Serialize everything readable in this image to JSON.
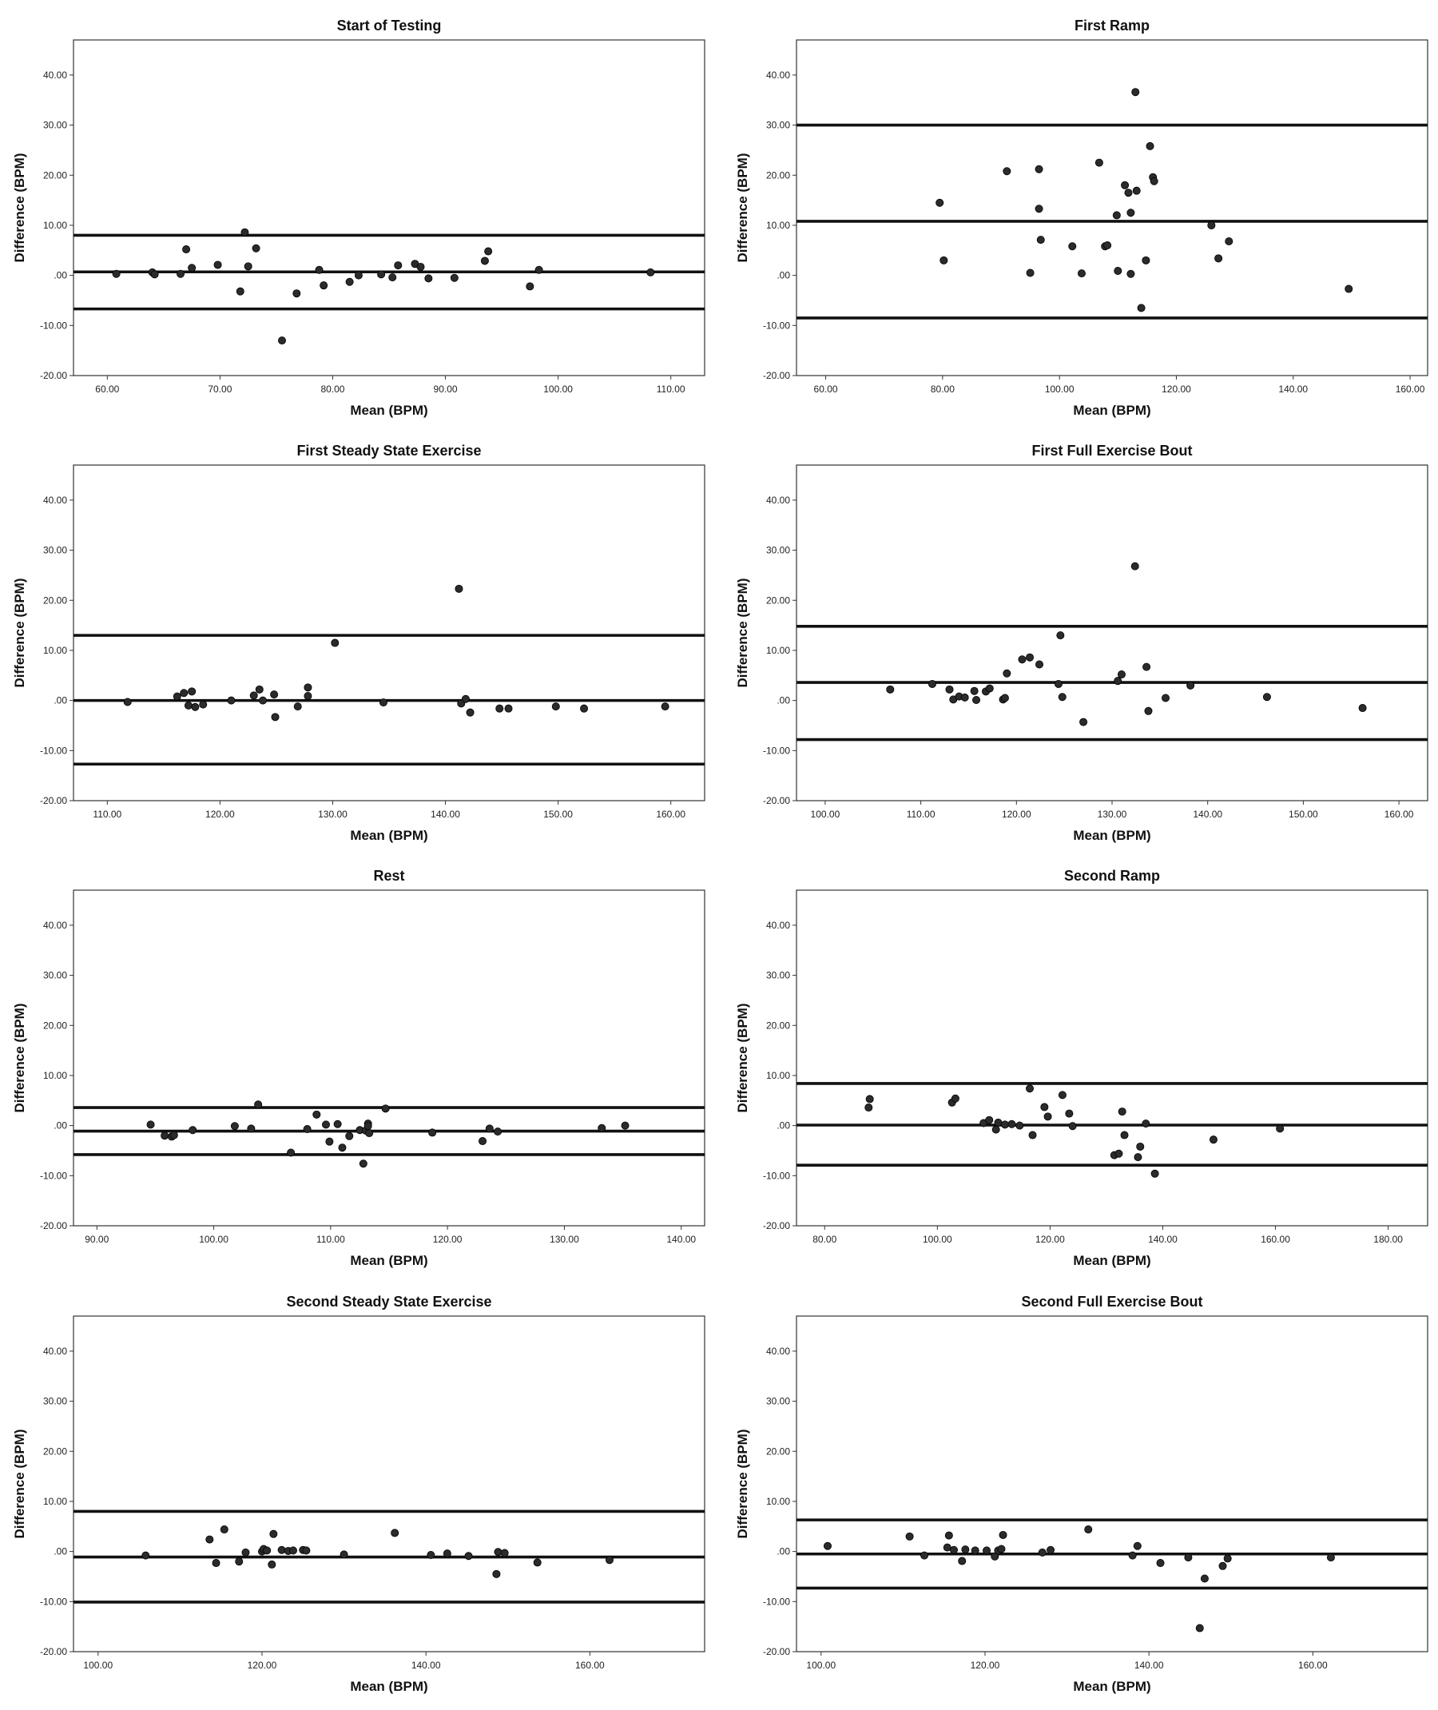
{
  "chart_data": [
    {
      "type": "scatter",
      "title": "Start of Testing",
      "xlabel": "Mean (BPM)",
      "ylabel": "Difference (BPM)",
      "xlim": [
        57,
        113
      ],
      "ylim": [
        -20,
        47
      ],
      "xticks": [
        60,
        70,
        80,
        90,
        100,
        110
      ],
      "xtick_labels": [
        "60.00",
        "70.00",
        "80.00",
        "90.00",
        "100.00",
        "110.00"
      ],
      "yticks": [
        -20,
        -10,
        0,
        10,
        20,
        30,
        40
      ],
      "ytick_labels": [
        "-20.00",
        "-10.00",
        ".00",
        "10.00",
        "20.00",
        "30.00",
        "40.00"
      ],
      "reference_lines": [
        8,
        0.7,
        -6.7
      ],
      "points": [
        [
          60.8,
          0.3
        ],
        [
          64.0,
          0.6
        ],
        [
          64.2,
          0.2
        ],
        [
          66.5,
          0.3
        ],
        [
          67.0,
          5.2
        ],
        [
          67.5,
          1.5
        ],
        [
          69.8,
          2.1
        ],
        [
          71.8,
          -3.2
        ],
        [
          72.2,
          8.6
        ],
        [
          72.5,
          1.8
        ],
        [
          73.2,
          5.4
        ],
        [
          75.5,
          -13
        ],
        [
          76.8,
          -3.6
        ],
        [
          78.8,
          1.1
        ],
        [
          79.2,
          -2.0
        ],
        [
          81.5,
          -1.3
        ],
        [
          82.3,
          0.0
        ],
        [
          84.3,
          0.2
        ],
        [
          85.3,
          -0.4
        ],
        [
          85.8,
          2.0
        ],
        [
          87.3,
          2.3
        ],
        [
          87.8,
          1.7
        ],
        [
          88.5,
          -0.6
        ],
        [
          90.8,
          -0.5
        ],
        [
          93.5,
          2.9
        ],
        [
          93.8,
          4.8
        ],
        [
          97.5,
          -2.2
        ],
        [
          98.3,
          1.1
        ],
        [
          108.2,
          0.6
        ]
      ]
    },
    {
      "type": "scatter",
      "title": "First Ramp",
      "xlabel": "Mean (BPM)",
      "ylabel": "Difference (BPM)",
      "xlim": [
        55,
        163
      ],
      "ylim": [
        -20,
        47
      ],
      "xticks": [
        60,
        80,
        100,
        120,
        140,
        160
      ],
      "xtick_labels": [
        "60.00",
        "80.00",
        "100.00",
        "120.00",
        "140.00",
        "160.00"
      ],
      "yticks": [
        -20,
        -10,
        0,
        10,
        20,
        30,
        40
      ],
      "ytick_labels": [
        "-20.00",
        "-10.00",
        ".00",
        "10.00",
        "20.00",
        "30.00",
        "40.00"
      ],
      "reference_lines": [
        30,
        10.8,
        -8.5
      ],
      "points": [
        [
          79.5,
          14.5
        ],
        [
          80.2,
          3.0
        ],
        [
          91.0,
          20.8
        ],
        [
          95.0,
          0.5
        ],
        [
          96.5,
          21.2
        ],
        [
          96.5,
          13.3
        ],
        [
          96.8,
          7.1
        ],
        [
          102.2,
          5.8
        ],
        [
          103.8,
          0.4
        ],
        [
          106.8,
          22.5
        ],
        [
          107.8,
          5.8
        ],
        [
          108.2,
          6.0
        ],
        [
          109.8,
          12.0
        ],
        [
          110.0,
          0.9
        ],
        [
          111.2,
          18.0
        ],
        [
          111.8,
          16.5
        ],
        [
          112.2,
          12.5
        ],
        [
          112.2,
          0.3
        ],
        [
          113.0,
          36.6
        ],
        [
          113.2,
          16.9
        ],
        [
          114.0,
          -6.5
        ],
        [
          114.8,
          3.0
        ],
        [
          115.5,
          25.8
        ],
        [
          116.0,
          19.6
        ],
        [
          116.2,
          18.8
        ],
        [
          126.0,
          10.0
        ],
        [
          127.2,
          3.4
        ],
        [
          129.0,
          6.8
        ],
        [
          149.5,
          -2.7
        ]
      ]
    },
    {
      "type": "scatter",
      "title": "First Steady State Exercise",
      "xlabel": "Mean (BPM)",
      "ylabel": "Difference (BPM)",
      "xlim": [
        107,
        163
      ],
      "ylim": [
        -20,
        47
      ],
      "xticks": [
        110,
        120,
        130,
        140,
        150,
        160
      ],
      "xtick_labels": [
        "110.00",
        "120.00",
        "130.00",
        "140.00",
        "150.00",
        "160.00"
      ],
      "yticks": [
        -20,
        -10,
        0,
        10,
        20,
        30,
        40
      ],
      "ytick_labels": [
        "-20.00",
        "-10.00",
        ".00",
        "10.00",
        "20.00",
        "30.00",
        "40.00"
      ],
      "reference_lines": [
        13,
        0,
        -12.7
      ],
      "points": [
        [
          111.8,
          -0.3
        ],
        [
          116.2,
          0.8
        ],
        [
          116.8,
          1.5
        ],
        [
          117.2,
          -1.0
        ],
        [
          117.5,
          1.8
        ],
        [
          117.8,
          -1.3
        ],
        [
          118.5,
          -0.8
        ],
        [
          121.0,
          0.0
        ],
        [
          123.0,
          1.0
        ],
        [
          123.5,
          2.2
        ],
        [
          123.8,
          0.0
        ],
        [
          124.8,
          1.2
        ],
        [
          124.9,
          -3.3
        ],
        [
          126.9,
          -1.2
        ],
        [
          127.8,
          0.9
        ],
        [
          127.8,
          2.6
        ],
        [
          130.2,
          11.5
        ],
        [
          134.5,
          -0.4
        ],
        [
          141.2,
          22.3
        ],
        [
          141.4,
          -0.6
        ],
        [
          141.8,
          0.3
        ],
        [
          142.2,
          -2.4
        ],
        [
          144.8,
          -1.6
        ],
        [
          145.6,
          -1.6
        ],
        [
          149.8,
          -1.2
        ],
        [
          152.3,
          -1.6
        ],
        [
          159.5,
          -1.2
        ]
      ]
    },
    {
      "type": "scatter",
      "title": "First Full Exercise Bout",
      "xlabel": "Mean (BPM)",
      "ylabel": "Difference (BPM)",
      "xlim": [
        97,
        163
      ],
      "ylim": [
        -20,
        47
      ],
      "xticks": [
        100,
        110,
        120,
        130,
        140,
        150,
        160
      ],
      "xtick_labels": [
        "100.00",
        "110.00",
        "120.00",
        "130.00",
        "140.00",
        "150.00",
        "160.00"
      ],
      "yticks": [
        -20,
        -10,
        0,
        10,
        20,
        30,
        40
      ],
      "ytick_labels": [
        "-20.00",
        "-10.00",
        ".00",
        "10.00",
        "20.00",
        "30.00",
        "40.00"
      ],
      "reference_lines": [
        14.8,
        3.6,
        -7.8
      ],
      "points": [
        [
          106.8,
          2.2
        ],
        [
          111.2,
          3.3
        ],
        [
          113.0,
          2.2
        ],
        [
          113.4,
          0.2
        ],
        [
          114.0,
          0.8
        ],
        [
          114.6,
          0.6
        ],
        [
          115.6,
          1.9
        ],
        [
          115.8,
          0.1
        ],
        [
          116.8,
          1.8
        ],
        [
          117.2,
          2.4
        ],
        [
          118.6,
          0.2
        ],
        [
          118.8,
          0.5
        ],
        [
          119.0,
          5.4
        ],
        [
          120.6,
          8.2
        ],
        [
          121.4,
          8.6
        ],
        [
          122.4,
          7.2
        ],
        [
          124.4,
          3.3
        ],
        [
          124.6,
          13.0
        ],
        [
          124.8,
          0.7
        ],
        [
          127.0,
          -4.3
        ],
        [
          130.6,
          3.9
        ],
        [
          131.0,
          5.2
        ],
        [
          132.4,
          26.8
        ],
        [
          133.6,
          6.7
        ],
        [
          133.8,
          -2.1
        ],
        [
          135.6,
          0.5
        ],
        [
          138.2,
          3.0
        ],
        [
          146.2,
          0.7
        ],
        [
          156.2,
          -1.5
        ]
      ]
    },
    {
      "type": "scatter",
      "title": "Rest",
      "xlabel": "Mean (BPM)",
      "ylabel": "Difference (BPM)",
      "xlim": [
        88,
        142
      ],
      "ylim": [
        -20,
        47
      ],
      "xticks": [
        90,
        100,
        110,
        120,
        130,
        140
      ],
      "xtick_labels": [
        "90.00",
        "100.00",
        "110.00",
        "120.00",
        "130.00",
        "140.00"
      ],
      "yticks": [
        -20,
        -10,
        0,
        10,
        20,
        30,
        40
      ],
      "ytick_labels": [
        "-20.00",
        "-10.00",
        ".00",
        "10.00",
        "20.00",
        "30.00",
        "40.00"
      ],
      "reference_lines": [
        3.6,
        -1.1,
        -5.8
      ],
      "points": [
        [
          94.6,
          0.2
        ],
        [
          95.8,
          -2.0
        ],
        [
          96.4,
          -2.2
        ],
        [
          96.6,
          -1.9
        ],
        [
          98.2,
          -0.9
        ],
        [
          101.8,
          -0.1
        ],
        [
          103.2,
          -0.6
        ],
        [
          103.8,
          4.2
        ],
        [
          106.6,
          -5.4
        ],
        [
          108.0,
          -0.7
        ],
        [
          108.8,
          2.2
        ],
        [
          109.6,
          0.2
        ],
        [
          109.9,
          -3.2
        ],
        [
          110.6,
          0.3
        ],
        [
          111.0,
          -4.4
        ],
        [
          111.6,
          -2.1
        ],
        [
          112.5,
          -0.9
        ],
        [
          112.8,
          -7.6
        ],
        [
          113.0,
          -1.0
        ],
        [
          113.2,
          0.4
        ],
        [
          113.2,
          -0.1
        ],
        [
          113.3,
          -1.5
        ],
        [
          114.7,
          3.4
        ],
        [
          118.7,
          -1.4
        ],
        [
          123.0,
          -3.1
        ],
        [
          123.6,
          -0.6
        ],
        [
          124.3,
          -1.2
        ],
        [
          133.2,
          -0.5
        ],
        [
          135.2,
          0.0
        ]
      ]
    },
    {
      "type": "scatter",
      "title": "Second Ramp",
      "xlabel": "Mean (BPM)",
      "ylabel": "Difference (BPM)",
      "xlim": [
        75,
        187
      ],
      "ylim": [
        -20,
        47
      ],
      "xticks": [
        80,
        100,
        120,
        140,
        160,
        180
      ],
      "xtick_labels": [
        "80.00",
        "100.00",
        "120.00",
        "140.00",
        "160.00",
        "180.00"
      ],
      "yticks": [
        -20,
        -10,
        0,
        10,
        20,
        30,
        40
      ],
      "ytick_labels": [
        "-20.00",
        "-10.00",
        ".00",
        "10.00",
        "20.00",
        "30.00",
        "40.00"
      ],
      "reference_lines": [
        8.4,
        0.1,
        -7.9
      ],
      "points": [
        [
          87.8,
          3.6
        ],
        [
          88.0,
          5.3
        ],
        [
          102.6,
          4.6
        ],
        [
          103.2,
          5.4
        ],
        [
          108.2,
          0.5
        ],
        [
          109.2,
          1.1
        ],
        [
          110.4,
          -0.8
        ],
        [
          110.8,
          0.6
        ],
        [
          112.0,
          0.2
        ],
        [
          113.2,
          0.3
        ],
        [
          114.6,
          0.0
        ],
        [
          116.4,
          7.4
        ],
        [
          116.9,
          -1.9
        ],
        [
          119.0,
          3.7
        ],
        [
          119.6,
          1.8
        ],
        [
          122.2,
          6.1
        ],
        [
          123.4,
          2.4
        ],
        [
          124.0,
          -0.1
        ],
        [
          131.4,
          -5.9
        ],
        [
          132.2,
          -5.6
        ],
        [
          132.8,
          2.8
        ],
        [
          133.2,
          -1.9
        ],
        [
          135.6,
          -6.3
        ],
        [
          136.0,
          -4.2
        ],
        [
          137.0,
          0.4
        ],
        [
          138.6,
          -9.6
        ],
        [
          149.0,
          -2.8
        ],
        [
          160.8,
          -0.6
        ]
      ]
    },
    {
      "type": "scatter",
      "title": "Second Steady State Exercise",
      "xlabel": "Mean (BPM)",
      "ylabel": "Difference (BPM)",
      "xlim": [
        97,
        174
      ],
      "ylim": [
        -20,
        47
      ],
      "xticks": [
        100,
        120,
        140,
        160
      ],
      "xtick_labels": [
        "100.00",
        "120.00",
        "140.00",
        "160.00"
      ],
      "yticks": [
        -20,
        -10,
        0,
        10,
        20,
        30,
        40
      ],
      "ytick_labels": [
        "-20.00",
        "-10.00",
        ".00",
        "10.00",
        "20.00",
        "30.00",
        "40.00"
      ],
      "reference_lines": [
        8,
        -1.1,
        -10.1
      ],
      "points": [
        [
          105.8,
          -0.8
        ],
        [
          113.6,
          2.4
        ],
        [
          114.4,
          -2.3
        ],
        [
          115.4,
          4.4
        ],
        [
          117.2,
          -2.0
        ],
        [
          118.0,
          -0.2
        ],
        [
          120.0,
          0.0
        ],
        [
          120.2,
          0.5
        ],
        [
          120.6,
          0.2
        ],
        [
          121.2,
          -2.6
        ],
        [
          121.4,
          3.5
        ],
        [
          122.4,
          0.3
        ],
        [
          123.2,
          0.1
        ],
        [
          123.8,
          0.2
        ],
        [
          125.0,
          0.3
        ],
        [
          125.4,
          0.2
        ],
        [
          130.0,
          -0.6
        ],
        [
          136.2,
          3.7
        ],
        [
          140.6,
          -0.7
        ],
        [
          142.6,
          -0.4
        ],
        [
          145.2,
          -0.9
        ],
        [
          148.6,
          -4.5
        ],
        [
          148.8,
          -0.1
        ],
        [
          149.6,
          -0.3
        ],
        [
          153.6,
          -2.2
        ],
        [
          162.4,
          -1.7
        ]
      ]
    },
    {
      "type": "scatter",
      "title": "Second Full Exercise Bout",
      "xlabel": "Mean (BPM)",
      "ylabel": "Difference (BPM)",
      "xlim": [
        97,
        174
      ],
      "ylim": [
        -20,
        47
      ],
      "xticks": [
        100,
        120,
        140,
        160
      ],
      "xtick_labels": [
        "100.00",
        "120.00",
        "140.00",
        "160.00"
      ],
      "yticks": [
        -20,
        -10,
        0,
        10,
        20,
        30,
        40
      ],
      "ytick_labels": [
        "-20.00",
        "-10.00",
        ".00",
        "10.00",
        "20.00",
        "30.00",
        "40.00"
      ],
      "reference_lines": [
        6.3,
        -0.5,
        -7.3
      ],
      "points": [
        [
          100.8,
          1.1
        ],
        [
          110.8,
          3.0
        ],
        [
          112.6,
          -0.8
        ],
        [
          115.4,
          0.8
        ],
        [
          115.6,
          3.2
        ],
        [
          116.2,
          0.3
        ],
        [
          117.2,
          -1.9
        ],
        [
          117.6,
          0.4
        ],
        [
          118.8,
          0.2
        ],
        [
          120.2,
          0.2
        ],
        [
          121.2,
          -1.0
        ],
        [
          121.6,
          0.2
        ],
        [
          122.0,
          0.5
        ],
        [
          122.2,
          3.3
        ],
        [
          127.0,
          -0.2
        ],
        [
          128.0,
          0.3
        ],
        [
          132.6,
          4.4
        ],
        [
          138.0,
          -0.8
        ],
        [
          138.6,
          1.1
        ],
        [
          141.4,
          -2.3
        ],
        [
          144.8,
          -1.2
        ],
        [
          146.2,
          -15.3
        ],
        [
          146.8,
          -5.4
        ],
        [
          149.0,
          -2.9
        ],
        [
          149.6,
          -1.4
        ],
        [
          162.2,
          -1.2
        ]
      ]
    }
  ]
}
